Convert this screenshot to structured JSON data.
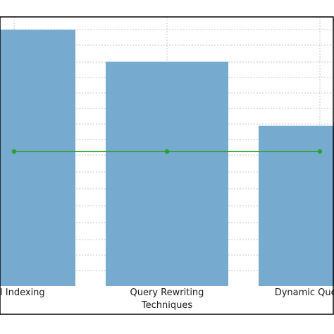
{
  "chart_data": {
    "type": "bar",
    "categories": [
      "Multi-Level Indexing",
      "Query Rewriting",
      "Dynamic Query Execution"
    ],
    "visible_category_labels": [
      "evel Indexing",
      "Query Rewriting",
      "Dynamic Query Exe"
    ],
    "series": [
      {
        "type": "bar",
        "values": [
          8.0,
          7.0,
          5.0
        ],
        "color": "#77aacf"
      },
      {
        "type": "line",
        "values": [
          4.2,
          4.2,
          4.2
        ],
        "color": "#2ca02c",
        "marker": "circle"
      }
    ],
    "xlabel": "Techniques",
    "ylabel": "",
    "title": "",
    "ylim": [
      0,
      8.4
    ],
    "grid": true,
    "grid_style": "dotted",
    "legend": "none"
  }
}
